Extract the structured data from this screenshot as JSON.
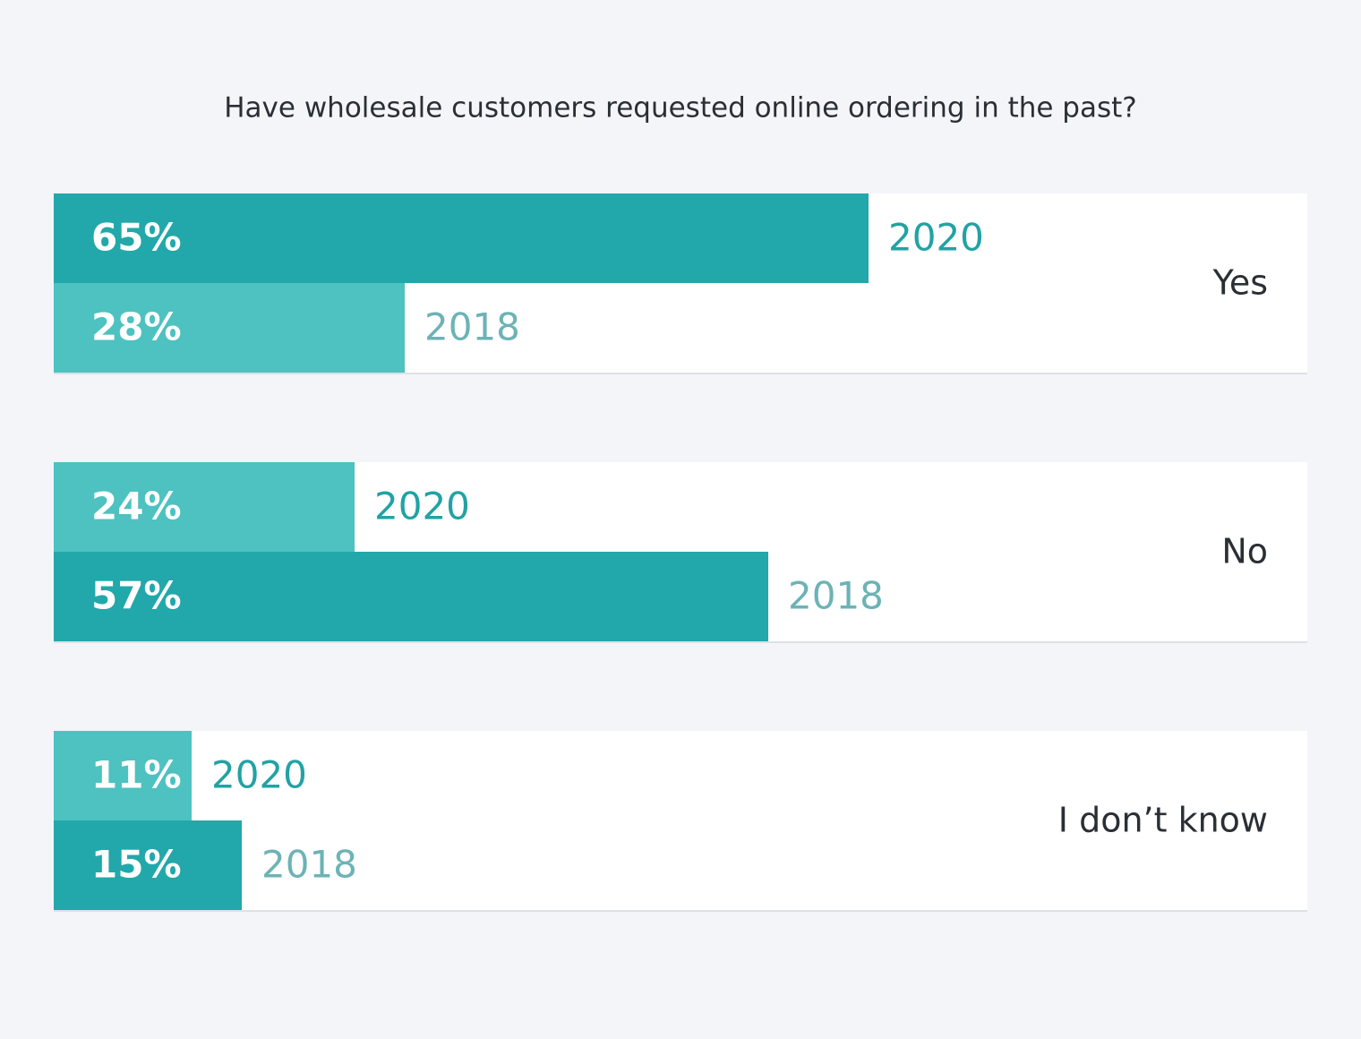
{
  "chart_data": {
    "type": "grouped-bar",
    "title": "Have wholesale customers requested online ordering in the past?",
    "categories": [
      "Yes",
      "No",
      "I don’t know"
    ],
    "xlim": [
      0,
      100
    ],
    "series": [
      {
        "name": "2020",
        "name_color": "#22a2a4",
        "values": [
          65,
          24,
          11
        ],
        "value_labels": [
          "65%",
          "24%",
          "11%"
        ],
        "colors": [
          "#22a8aa",
          "#4dc2c0",
          "#4dc2c0"
        ]
      },
      {
        "name": "2018",
        "name_color": "#6cb3b5",
        "values": [
          28,
          57,
          15
        ],
        "value_labels": [
          "28%",
          "57%",
          "15%"
        ],
        "colors": [
          "#4dc2c0",
          "#22a8aa",
          "#22a8aa"
        ]
      }
    ]
  }
}
